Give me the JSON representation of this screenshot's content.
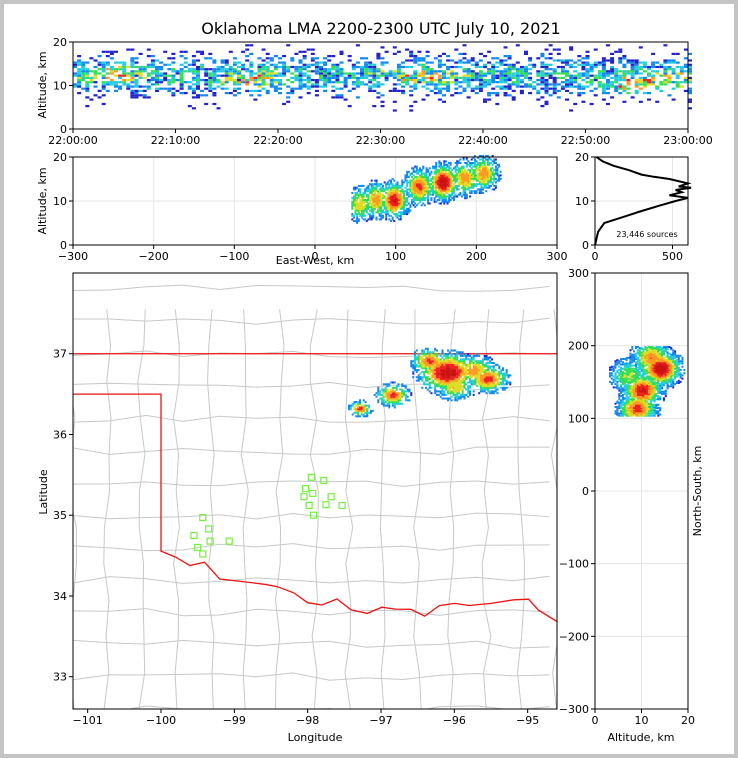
{
  "title": "Oklahoma LMA 2200-2300 UTC July 10, 2021",
  "source_count_label": "23,446 sources",
  "colors": {
    "border_state": "#ee1111",
    "county_lines": "#c8c8c8",
    "stations": "#77ee44",
    "grid": "#e6e6e6",
    "density_scale": [
      "#2222cc",
      "#1188ee",
      "#22ccdd",
      "#33dd55",
      "#dddd22",
      "#ff9922",
      "#ee2222",
      "#cc1111",
      "#eeeeee",
      "#222222"
    ]
  },
  "chart_data": [
    {
      "id": "time_altitude",
      "type": "heatmap",
      "xlabel": "",
      "ylabel": "Altitude, km",
      "xticks": [
        "22:00:00",
        "22:10:00",
        "22:20:00",
        "22:30:00",
        "22:40:00",
        "22:50:00",
        "23:00:00"
      ],
      "xlim_minutes": [
        0,
        60
      ],
      "ylim": [
        0,
        20
      ],
      "yticks": [
        0,
        10,
        20
      ],
      "band_center_km": 12,
      "band_halfwidth_km": 5,
      "hot_spots": [
        {
          "t_min": 4,
          "alt_km": 12,
          "intensity": 0.8
        },
        {
          "t_min": 17,
          "alt_km": 11,
          "intensity": 0.7
        },
        {
          "t_min": 34,
          "alt_km": 12,
          "intensity": 0.8
        },
        {
          "t_min": 55,
          "alt_km": 10,
          "intensity": 1.0
        },
        {
          "t_min": 58,
          "alt_km": 11,
          "intensity": 0.9
        }
      ]
    },
    {
      "id": "ew_altitude",
      "type": "heatmap",
      "xlabel": "East-West, km",
      "ylabel": "Altitude, km",
      "xlim": [
        -300,
        300
      ],
      "xticks": [
        -300,
        -200,
        -100,
        0,
        100,
        200,
        300
      ],
      "ylim": [
        0,
        20
      ],
      "yticks": [
        0,
        10,
        20
      ],
      "cells": [
        {
          "ew": 55,
          "alt": 9,
          "intensity": 0.6
        },
        {
          "ew": 75,
          "alt": 10,
          "intensity": 0.7
        },
        {
          "ew": 97,
          "alt": 10,
          "intensity": 0.9
        },
        {
          "ew": 128,
          "alt": 13,
          "intensity": 0.8
        },
        {
          "ew": 158,
          "alt": 14,
          "intensity": 1.0
        },
        {
          "ew": 185,
          "alt": 15,
          "intensity": 0.7
        },
        {
          "ew": 208,
          "alt": 16,
          "intensity": 0.7
        }
      ],
      "extent": {
        "ew": [
          45,
          240
        ],
        "alt": [
          4,
          20
        ]
      }
    },
    {
      "id": "altitude_histogram",
      "type": "line",
      "xlim": [
        0,
        600
      ],
      "xticks": [
        0,
        500
      ],
      "ylim": [
        0,
        20
      ],
      "yticks": [
        0,
        10,
        20
      ],
      "points": [
        [
          0,
          0
        ],
        [
          20,
          3
        ],
        [
          60,
          5
        ],
        [
          150,
          6
        ],
        [
          280,
          7.5
        ],
        [
          420,
          9
        ],
        [
          520,
          10
        ],
        [
          600,
          10.7
        ],
        [
          480,
          11.3
        ],
        [
          560,
          12
        ],
        [
          520,
          12.5
        ],
        [
          620,
          13
        ],
        [
          540,
          13.3
        ],
        [
          600,
          14
        ],
        [
          480,
          15
        ],
        [
          380,
          15.5
        ],
        [
          300,
          16
        ],
        [
          220,
          17
        ],
        [
          120,
          18
        ],
        [
          50,
          19
        ],
        [
          10,
          20
        ]
      ]
    },
    {
      "id": "plan_view",
      "type": "map",
      "xlabel": "Longitude",
      "ylabel": "Latitude",
      "xlim": [
        -101.2,
        -94.6
      ],
      "ylim": [
        32.6,
        38.0
      ],
      "xticks": [
        -101,
        -100,
        -99,
        -98,
        -97,
        -96,
        -95
      ],
      "yticks": [
        33,
        34,
        35,
        36,
        37
      ],
      "stations": [
        [
          -99.43,
          34.97
        ],
        [
          -99.35,
          34.83
        ],
        [
          -99.55,
          34.75
        ],
        [
          -99.33,
          34.68
        ],
        [
          -99.07,
          34.68
        ],
        [
          -99.5,
          34.6
        ],
        [
          -99.43,
          34.52
        ],
        [
          -97.95,
          35.47
        ],
        [
          -97.78,
          35.43
        ],
        [
          -98.03,
          35.33
        ],
        [
          -97.93,
          35.27
        ],
        [
          -98.05,
          35.23
        ],
        [
          -97.68,
          35.23
        ],
        [
          -97.98,
          35.12
        ],
        [
          -97.75,
          35.13
        ],
        [
          -97.53,
          35.12
        ],
        [
          -97.92,
          35.0
        ]
      ],
      "storm_cells": [
        {
          "lon": -96.35,
          "lat": 36.92,
          "r": 0.22,
          "intensity": 0.8
        },
        {
          "lon": -96.1,
          "lat": 36.78,
          "r": 0.35,
          "intensity": 1.0
        },
        {
          "lon": -95.75,
          "lat": 36.8,
          "r": 0.28,
          "intensity": 0.7
        },
        {
          "lon": -95.55,
          "lat": 36.7,
          "r": 0.25,
          "intensity": 0.8
        },
        {
          "lon": -96.0,
          "lat": 36.6,
          "r": 0.25,
          "intensity": 0.6
        },
        {
          "lon": -96.85,
          "lat": 36.5,
          "r": 0.2,
          "intensity": 0.8
        },
        {
          "lon": -97.3,
          "lat": 36.33,
          "r": 0.14,
          "intensity": 0.8
        }
      ]
    },
    {
      "id": "ns_altitude",
      "type": "heatmap",
      "xlabel": "Altitude, km",
      "ylabel": "North-South, km",
      "xlim": [
        0,
        20
      ],
      "xticks": [
        0,
        10,
        20
      ],
      "ylim": [
        -300,
        300
      ],
      "yticks": [
        -300,
        -200,
        -100,
        0,
        100,
        200,
        300
      ],
      "cells": [
        {
          "alt": 14,
          "ns": 170,
          "intensity": 1.0
        },
        {
          "alt": 10,
          "ns": 140,
          "intensity": 0.9
        },
        {
          "alt": 9,
          "ns": 115,
          "intensity": 0.8
        },
        {
          "alt": 12,
          "ns": 185,
          "intensity": 0.7
        },
        {
          "alt": 7,
          "ns": 160,
          "intensity": 0.5
        }
      ],
      "extent": {
        "alt": [
          3,
          20
        ],
        "ns": [
          105,
          200
        ]
      }
    }
  ]
}
